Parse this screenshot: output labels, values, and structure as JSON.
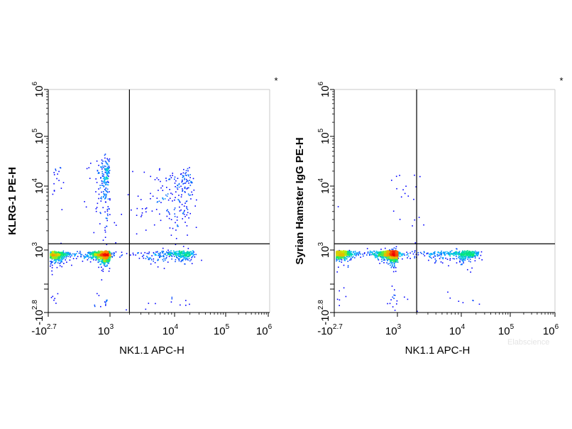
{
  "watermark": "Elabscience",
  "chart_data": [
    {
      "type": "scatter",
      "subtype": "flow-cytometry-density-dot-plot",
      "xlabel": "NK1.1 APC-H",
      "ylabel": "KLRG-1 PE-H",
      "corner_mark": "*",
      "x_scale": "biexponential",
      "y_scale": "biexponential",
      "xlim": [
        -500,
        1000000
      ],
      "ylim": [
        -630,
        1000000
      ],
      "x_ticks": [
        {
          "base": "-10",
          "exp": "2.7",
          "value": -500
        },
        {
          "base": "10",
          "exp": "3",
          "value": 1000
        },
        {
          "base": "10",
          "exp": "4",
          "value": 10000
        },
        {
          "base": "10",
          "exp": "5",
          "value": 100000
        },
        {
          "base": "10",
          "exp": "6",
          "value": 1000000
        }
      ],
      "y_ticks": [
        {
          "base": "-10",
          "exp": "2.8",
          "value": -630
        },
        {
          "base": "10",
          "exp": "3",
          "value": 1000
        },
        {
          "base": "10",
          "exp": "4",
          "value": 10000
        },
        {
          "base": "10",
          "exp": "5",
          "value": 100000
        },
        {
          "base": "10",
          "exp": "6",
          "value": 1000000
        }
      ],
      "gate": {
        "x": 2000,
        "y": 1250
      },
      "populations": [
        {
          "name": "main",
          "x": 180,
          "y": 400,
          "sx": 300,
          "sy": 170,
          "count": 2600
        },
        {
          "name": "NK1.1- KLRG-1+",
          "x": 300,
          "y": 12000,
          "sx": 220,
          "sy": 12000,
          "count": 260
        },
        {
          "name": "NK1.1+ KLRG-1-",
          "x": 10500,
          "y": 420,
          "sx": 6000,
          "sy": 220,
          "count": 330
        },
        {
          "name": "NK1.1+ KLRG-1+",
          "x": 13000,
          "y": 7000,
          "sx": 5500,
          "sy": 6500,
          "count": 230
        },
        {
          "name": "scatter",
          "x": 3000,
          "y": 2000,
          "sx": 4000,
          "sy": 3000,
          "count": 60
        }
      ]
    },
    {
      "type": "scatter",
      "subtype": "flow-cytometry-density-dot-plot",
      "xlabel": "NK1.1 APC-H",
      "ylabel": "Syrian Hamster IgG PE-H",
      "corner_mark": "*",
      "x_scale": "biexponential",
      "y_scale": "biexponential",
      "xlim": [
        -500,
        1000000
      ],
      "ylim": [
        -630,
        1000000
      ],
      "x_ticks": [
        {
          "base": "-10",
          "exp": "2.7",
          "value": -500
        },
        {
          "base": "10",
          "exp": "3",
          "value": 1000
        },
        {
          "base": "10",
          "exp": "4",
          "value": 10000
        },
        {
          "base": "10",
          "exp": "5",
          "value": 100000
        },
        {
          "base": "10",
          "exp": "6",
          "value": 1000000
        }
      ],
      "y_ticks": [
        {
          "base": "-10",
          "exp": "2.8",
          "value": -630
        },
        {
          "base": "10",
          "exp": "3",
          "value": 1000
        },
        {
          "base": "10",
          "exp": "4",
          "value": 10000
        },
        {
          "base": "10",
          "exp": "5",
          "value": 100000
        },
        {
          "base": "10",
          "exp": "6",
          "value": 1000000
        }
      ],
      "gate": {
        "x": 2000,
        "y": 1250
      },
      "populations": [
        {
          "name": "main",
          "x": 220,
          "y": 480,
          "sx": 330,
          "sy": 190,
          "count": 2900
        },
        {
          "name": "NK1.1+ IgG-",
          "x": 9500,
          "y": 460,
          "sx": 6000,
          "sy": 200,
          "count": 450
        },
        {
          "name": "upper-scatter",
          "x": 800,
          "y": 4000,
          "sx": 1500,
          "sy": 8000,
          "count": 55
        }
      ]
    }
  ]
}
